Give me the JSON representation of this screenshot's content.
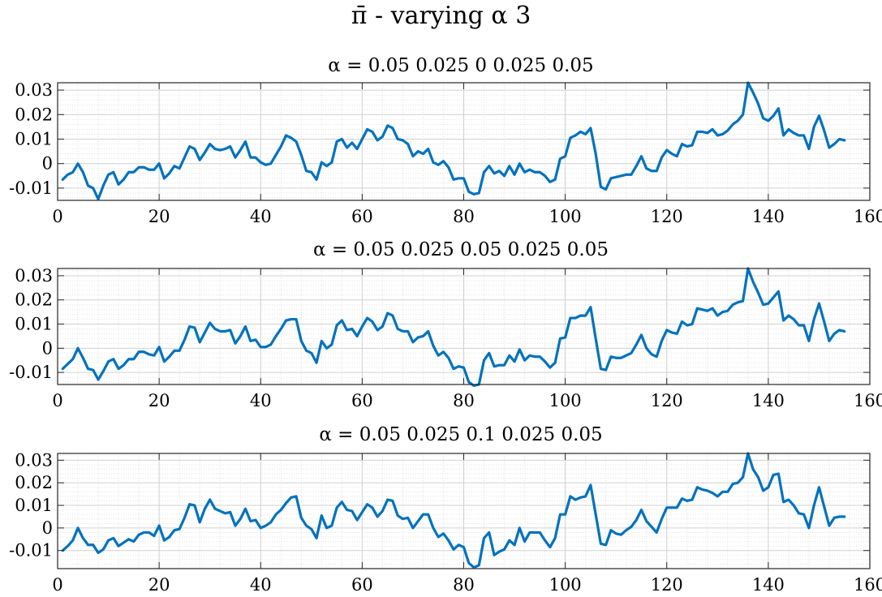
{
  "figure": {
    "title": "π̄ - varying α 3"
  },
  "colors": {
    "line": "#0072BD",
    "grid_major": "#d0d0d0",
    "grid_minor": "#e2e2e2",
    "axis": "#262626"
  },
  "chart_data": [
    {
      "type": "line",
      "title": "α = 0.05 0.025 0 0.025 0.05",
      "xlim": [
        0,
        160
      ],
      "ylim": [
        -0.015,
        0.033
      ],
      "xticks": [
        0,
        20,
        40,
        60,
        80,
        100,
        120,
        140,
        160
      ],
      "xtick_labels": [
        "0",
        "20",
        "40",
        "60",
        "80",
        "100",
        "120",
        "140",
        "160"
      ],
      "yticks": [
        -0.01,
        0,
        0.01,
        0.02,
        0.03
      ],
      "ytick_labels": [
        "-0.01",
        "0",
        "0.01",
        "0.02",
        "0.03"
      ],
      "grid": true,
      "minor_grid": true,
      "x_start": 1,
      "y": [
        -0.0065,
        -0.0045,
        -0.0035,
        0.0,
        -0.0035,
        -0.009,
        -0.01,
        -0.0145,
        -0.009,
        -0.0045,
        -0.0035,
        -0.0085,
        -0.0065,
        -0.0035,
        -0.0035,
        -0.0015,
        -0.0015,
        -0.0025,
        -0.0025,
        0.0,
        -0.006,
        -0.004,
        -0.001,
        -0.002,
        0.0025,
        0.007,
        0.006,
        0.0015,
        0.0045,
        0.008,
        0.006,
        0.0055,
        0.006,
        0.007,
        0.0025,
        0.0055,
        0.009,
        0.0025,
        0.0025,
        0.0005,
        -0.0005,
        0.0,
        0.0035,
        0.007,
        0.0115,
        0.0105,
        0.009,
        0.0035,
        -0.003,
        -0.0035,
        -0.0065,
        0.0005,
        -0.001,
        0.0005,
        0.009,
        0.01,
        0.0065,
        0.0085,
        0.006,
        0.01,
        0.014,
        0.013,
        0.0095,
        0.011,
        0.0155,
        0.0145,
        0.01,
        0.0095,
        0.008,
        0.003,
        0.005,
        0.004,
        0.006,
        0.0005,
        -0.0005,
        0.001,
        -0.0015,
        -0.0065,
        -0.006,
        -0.006,
        -0.0115,
        -0.0125,
        -0.012,
        -0.0035,
        -0.001,
        -0.004,
        -0.003,
        -0.005,
        -0.001,
        -0.0045,
        0.0,
        -0.0035,
        -0.0025,
        -0.0035,
        -0.0035,
        -0.005,
        -0.0075,
        -0.0065,
        0.002,
        0.003,
        0.0105,
        0.0115,
        0.013,
        0.012,
        0.0145,
        0.004,
        -0.0095,
        -0.0105,
        -0.006,
        -0.0055,
        -0.005,
        -0.0045,
        -0.0045,
        -0.001,
        0.003,
        -0.002,
        -0.003,
        -0.003,
        0.0025,
        0.0055,
        0.004,
        0.003,
        0.008,
        0.007,
        0.0075,
        0.013,
        0.013,
        0.0125,
        0.014,
        0.0115,
        0.012,
        0.0135,
        0.016,
        0.0175,
        0.02,
        0.033,
        0.029,
        0.0245,
        0.0185,
        0.0175,
        0.0195,
        0.0225,
        0.0115,
        0.014,
        0.0125,
        0.0115,
        0.0115,
        0.006,
        0.015,
        0.0195,
        0.0135,
        0.0065,
        0.008,
        0.01,
        0.0095
      ]
    },
    {
      "type": "line",
      "title": "α = 0.05 0.025 0.05 0.025 0.05",
      "xlim": [
        0,
        160
      ],
      "ylim": [
        -0.015,
        0.033
      ],
      "xticks": [
        0,
        20,
        40,
        60,
        80,
        100,
        120,
        140,
        160
      ],
      "xtick_labels": [
        "0",
        "20",
        "40",
        "60",
        "80",
        "100",
        "120",
        "140",
        "160"
      ],
      "yticks": [
        -0.01,
        0,
        0.01,
        0.02,
        0.03
      ],
      "ytick_labels": [
        "-0.01",
        "0",
        "0.01",
        "0.02",
        "0.03"
      ],
      "grid": true,
      "minor_grid": true,
      "x_start": 1,
      "y": [
        -0.0085,
        -0.0065,
        -0.0045,
        0.0,
        -0.004,
        -0.0085,
        -0.009,
        -0.013,
        -0.0095,
        -0.0055,
        -0.0045,
        -0.0085,
        -0.007,
        -0.0045,
        -0.0045,
        -0.0015,
        -0.0015,
        -0.0025,
        -0.003,
        0.0005,
        -0.0055,
        -0.0035,
        -0.001,
        -0.001,
        0.0035,
        0.009,
        0.0085,
        0.0025,
        0.0065,
        0.0105,
        0.008,
        0.007,
        0.007,
        0.0075,
        0.002,
        0.005,
        0.009,
        0.003,
        0.0035,
        0.0005,
        0.0005,
        0.0015,
        0.005,
        0.008,
        0.0115,
        0.012,
        0.012,
        0.003,
        -0.001,
        -0.002,
        -0.006,
        0.003,
        0.0,
        0.0015,
        0.0095,
        0.0115,
        0.0075,
        0.008,
        0.005,
        0.009,
        0.0125,
        0.011,
        0.0075,
        0.009,
        0.0145,
        0.0135,
        0.008,
        0.007,
        0.007,
        0.0025,
        0.0045,
        0.005,
        0.007,
        0.001,
        -0.003,
        -0.0015,
        -0.004,
        -0.0085,
        -0.0075,
        -0.008,
        -0.014,
        -0.0155,
        -0.015,
        -0.005,
        -0.002,
        -0.0075,
        -0.007,
        -0.007,
        -0.003,
        -0.0055,
        -0.0005,
        -0.005,
        -0.003,
        -0.0035,
        -0.0035,
        -0.0055,
        -0.008,
        -0.006,
        0.004,
        0.0045,
        0.0125,
        0.0125,
        0.0135,
        0.0135,
        0.017,
        0.004,
        -0.0085,
        -0.009,
        -0.0035,
        -0.004,
        -0.004,
        -0.003,
        -0.002,
        0.0015,
        0.0055,
        0.0,
        -0.0025,
        -0.0035,
        0.003,
        0.0075,
        0.0065,
        0.006,
        0.011,
        0.0095,
        0.01,
        0.0165,
        0.016,
        0.0155,
        0.0165,
        0.0135,
        0.015,
        0.0155,
        0.018,
        0.019,
        0.0195,
        0.033,
        0.0275,
        0.023,
        0.018,
        0.0185,
        0.021,
        0.0235,
        0.0115,
        0.0135,
        0.012,
        0.0095,
        0.0095,
        0.003,
        0.012,
        0.0185,
        0.011,
        0.003,
        0.006,
        0.0075,
        0.007
      ]
    },
    {
      "type": "line",
      "title": "α = 0.05 0.025 0.1 0.025 0.05",
      "xlim": [
        0,
        160
      ],
      "ylim": [
        -0.018,
        0.033
      ],
      "xticks": [
        0,
        20,
        40,
        60,
        80,
        100,
        120,
        140,
        160
      ],
      "xtick_labels": [
        "0",
        "20",
        "40",
        "60",
        "80",
        "100",
        "120",
        "140",
        "160"
      ],
      "yticks": [
        -0.01,
        0,
        0.01,
        0.02,
        0.03
      ],
      "ytick_labels": [
        "-0.01",
        "0",
        "0.01",
        "0.02",
        "0.03"
      ],
      "grid": true,
      "minor_grid": true,
      "x_start": 1,
      "y": [
        -0.01,
        -0.008,
        -0.0055,
        0.0,
        -0.0045,
        -0.0075,
        -0.0075,
        -0.011,
        -0.0095,
        -0.0055,
        -0.0045,
        -0.008,
        -0.0065,
        -0.005,
        -0.006,
        -0.003,
        -0.002,
        -0.002,
        -0.0035,
        0.001,
        -0.0055,
        -0.004,
        -0.001,
        -0.0005,
        0.0045,
        0.0105,
        0.01,
        0.0025,
        0.0085,
        0.0125,
        0.0085,
        0.0075,
        0.0065,
        0.007,
        0.001,
        0.004,
        0.0085,
        0.003,
        0.0035,
        0.0,
        0.001,
        0.0025,
        0.006,
        0.008,
        0.011,
        0.0135,
        0.014,
        0.0045,
        0.001,
        -0.0005,
        -0.0045,
        0.0055,
        0.0,
        0.001,
        0.009,
        0.0115,
        0.008,
        0.0075,
        0.0035,
        0.007,
        0.0105,
        0.009,
        0.005,
        0.0075,
        0.0125,
        0.012,
        0.0055,
        0.004,
        0.0045,
        0.0,
        0.003,
        0.006,
        0.006,
        0.0,
        -0.004,
        -0.0025,
        -0.0055,
        -0.0095,
        -0.0075,
        -0.0085,
        -0.0155,
        -0.0175,
        -0.0165,
        -0.0045,
        -0.002,
        -0.012,
        -0.0105,
        -0.0095,
        -0.0055,
        -0.0075,
        0.0,
        -0.006,
        -0.002,
        -0.002,
        -0.002,
        -0.0055,
        -0.0085,
        -0.0045,
        0.006,
        0.006,
        0.014,
        0.0125,
        0.0135,
        0.014,
        0.019,
        0.006,
        -0.007,
        -0.0075,
        -0.001,
        -0.0025,
        -0.003,
        -0.001,
        0.0005,
        0.0035,
        0.008,
        0.003,
        0.0005,
        -0.002,
        0.004,
        0.009,
        0.009,
        0.009,
        0.013,
        0.012,
        0.0125,
        0.018,
        0.017,
        0.0165,
        0.0155,
        0.014,
        0.016,
        0.016,
        0.0195,
        0.02,
        0.0225,
        0.033,
        0.026,
        0.0225,
        0.0165,
        0.018,
        0.0235,
        0.024,
        0.0115,
        0.0125,
        0.01,
        0.0065,
        0.006,
        0.0,
        0.01,
        0.018,
        0.0095,
        0.001,
        0.0045,
        0.005,
        0.005
      ]
    }
  ]
}
